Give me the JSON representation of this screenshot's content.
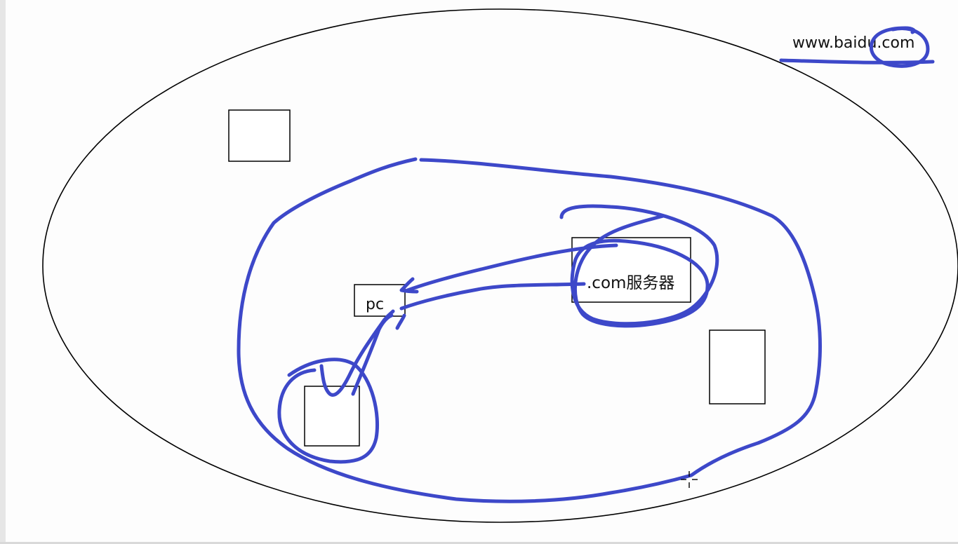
{
  "diagram": {
    "domain_label": "www.baidu.com",
    "pc_label": "pc",
    "server_label": ".com服务器"
  },
  "colors": {
    "ink": "#3d48c9",
    "outline": "#000000",
    "background": "#fdfdfd"
  },
  "cursor": {
    "icon": "crosshair-cursor-icon"
  }
}
